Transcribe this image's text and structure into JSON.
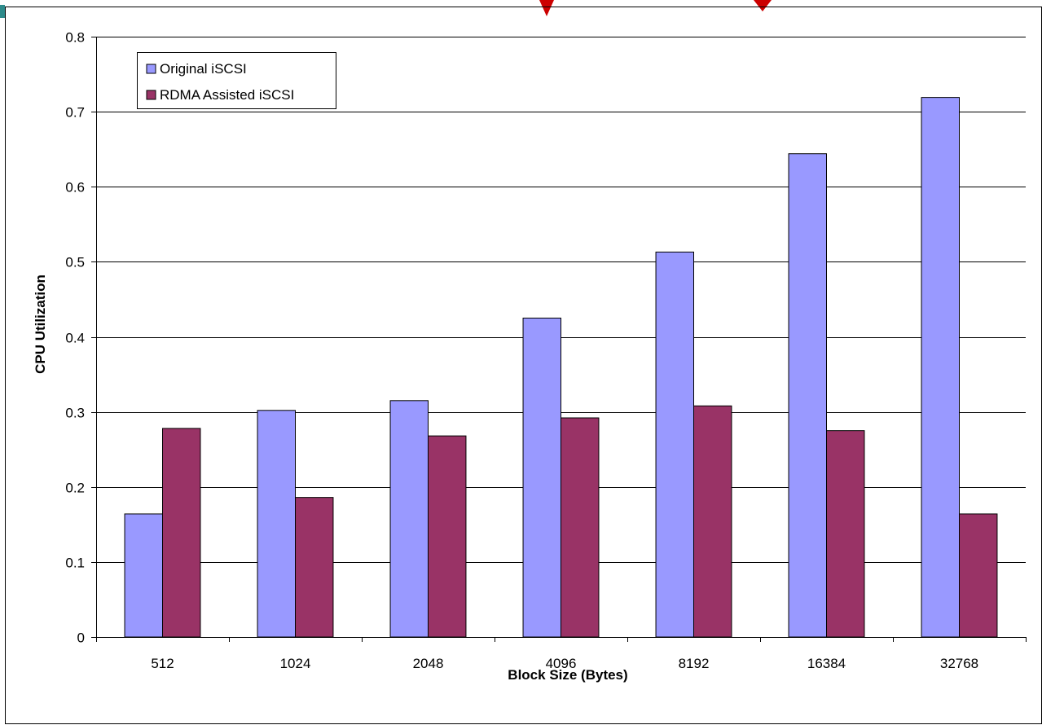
{
  "chart_data": {
    "type": "bar",
    "title": "",
    "xlabel": "Block Size (Bytes)",
    "ylabel": "CPU Utilization",
    "categories": [
      "512",
      "1024",
      "2048",
      "4096",
      "8192",
      "16384",
      "32768"
    ],
    "series": [
      {
        "name": "Original iSCSI",
        "color": "#9999ff",
        "values": [
          0.164,
          0.302,
          0.315,
          0.425,
          0.513,
          0.644,
          0.719
        ]
      },
      {
        "name": "RDMA Assisted iSCSI",
        "color": "#993366",
        "values": [
          0.278,
          0.186,
          0.268,
          0.292,
          0.308,
          0.275,
          0.164
        ]
      }
    ],
    "ylim": [
      0,
      0.8
    ],
    "yticks": [
      "0",
      "0.1",
      "0.2",
      "0.3",
      "0.4",
      "0.5",
      "0.6",
      "0.7",
      "0.8"
    ],
    "grid": true,
    "legend_position": "top-left",
    "colors": {
      "accent_red": "#cc0000",
      "corner_teal": "#2e8b8b"
    }
  }
}
